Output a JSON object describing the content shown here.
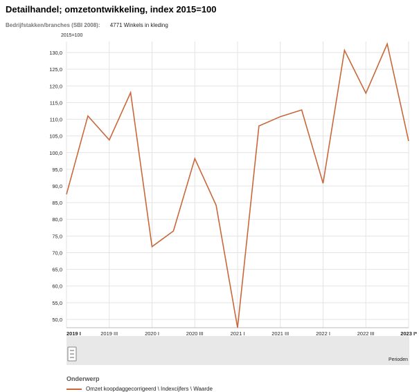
{
  "page": {
    "title": "Detailhandel; omzetontwikkeling, index 2015=100",
    "filter_label": "Bedrijfstakken/branches (SBI 2008):",
    "filter_value": "4771 Winkels in kleding"
  },
  "legend": {
    "title": "Onderwerp",
    "item": "Omzet koopdaggecorrigeerd \\ Indexcijfers \\ Waarde"
  },
  "colors": {
    "series": "#c8683a",
    "grid": "#e3e3e3",
    "band": "#e8e8e8"
  },
  "chart_data": {
    "type": "line",
    "ylabel": "2015=100",
    "xlabel": "Perioden",
    "ylim": [
      47.5,
      132.5
    ],
    "yticks": [
      "50,0",
      "55,0",
      "60,0",
      "65,0",
      "70,0",
      "75,0",
      "80,0",
      "85,0",
      "90,0",
      "95,0",
      "100,0",
      "105,0",
      "110,0",
      "115,0",
      "120,0",
      "125,0",
      "130,0"
    ],
    "x": [
      "2019 I",
      "2019 II",
      "2019 III",
      "2019 IV",
      "2020 I",
      "2020 II",
      "2020 III",
      "2020 IV",
      "2021 I",
      "2021 II",
      "2021 III",
      "2021 IV",
      "2022 I",
      "2022 II",
      "2022 III",
      "2022 IV",
      "2023 I*"
    ],
    "xtick_labels": [
      "2019 I",
      "2019 III",
      "2020 I",
      "2020 III",
      "2021 I",
      "2021 III",
      "2022 I",
      "2022 III",
      "2023 I*"
    ],
    "series": [
      {
        "values": [
          87.5,
          111.0,
          103.8,
          118.0,
          71.8,
          76.5,
          98.2,
          84.2,
          47.5,
          108.0,
          110.8,
          112.8,
          90.8,
          130.7,
          117.8,
          132.6,
          103.5
        ]
      }
    ]
  }
}
